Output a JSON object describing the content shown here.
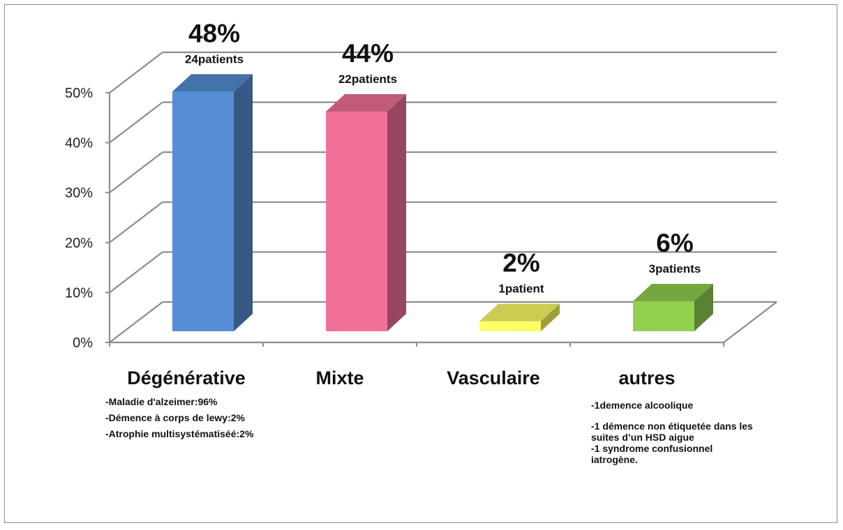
{
  "chart_data": {
    "type": "bar",
    "style": "3d-column",
    "categories": [
      "Dégénérative",
      "Mixte",
      "Vasculaire",
      "autres"
    ],
    "values": [
      48,
      44,
      2,
      6
    ],
    "value_labels": [
      "48%",
      "44%",
      "2%",
      "6%"
    ],
    "count_labels": [
      "24patients",
      "22patients",
      "1patient",
      "3patients"
    ],
    "colors": [
      "#558ED5",
      "#F37199",
      "#FFFF66",
      "#92D050"
    ],
    "yticks": [
      "0%",
      "10%",
      "20%",
      "30%",
      "40%",
      "50%"
    ],
    "ylim": [
      0,
      50
    ],
    "grid": true,
    "legend": "none",
    "annotations": [
      {
        "category": "Dégénérative",
        "lines": [
          "-Maladie d'alzeimer:96%",
          "-Démence à corps de lewy:2%",
          "-Atrophie multisystématiséé:2%"
        ]
      },
      {
        "category": "autres",
        "lines": [
          "-1demence alcoolique",
          "-1 démence non étiquetée dans les",
          "suites d’un HSD aigue",
          "-1 syndrome confusionnel",
          "iatrogène."
        ]
      }
    ]
  }
}
